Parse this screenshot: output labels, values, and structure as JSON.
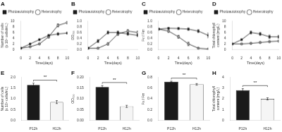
{
  "chart_data": [
    {
      "type": "line",
      "title": "A",
      "xlabel": "Time(days)",
      "ylabel": "Number of cells (x 10⁶ cells/mL)",
      "x": [
        0,
        2,
        4,
        6,
        8,
        10
      ],
      "xlim": [
        0,
        10
      ],
      "xticks": [
        0,
        2,
        4,
        6,
        8,
        10
      ],
      "ylim": [
        0,
        10
      ],
      "yticks": [
        0,
        2,
        4,
        6,
        8,
        10
      ],
      "legend": "upper left",
      "grid": false,
      "series": [
        {
          "name": "Photoautotrophy",
          "color": "#1a1a1a",
          "marker": "square",
          "values": [
            0.5,
            2.0,
            3.5,
            5.0,
            5.5,
            5.8
          ],
          "errors": [
            0.1,
            0.2,
            0.3,
            0.3,
            0.4,
            0.3
          ]
        },
        {
          "name": "Heterotrophy",
          "color": "#1a1a1a",
          "marker": "open-circle",
          "values": [
            0.5,
            1.0,
            2.0,
            4.5,
            8.5,
            9.5
          ],
          "errors": [
            0.1,
            0.1,
            0.2,
            0.4,
            0.5,
            0.4
          ]
        }
      ]
    },
    {
      "type": "line",
      "title": "B",
      "xlabel": "Time(days)",
      "ylabel": "OD₇₀₀",
      "x": [
        0,
        2,
        4,
        6,
        8,
        10
      ],
      "xlim": [
        0,
        10
      ],
      "xticks": [
        0,
        2,
        4,
        6,
        8,
        10
      ],
      "ylim": [
        0,
        1.0
      ],
      "yticks": [
        {
          "value": 0,
          "label": "0.0"
        },
        0.2,
        0.4,
        0.6,
        0.8,
        {
          "value": 1.0,
          "label": "1.0"
        }
      ],
      "legend": "upper left",
      "grid": false,
      "series": [
        {
          "name": "Photoautotrophy",
          "color": "#1a1a1a",
          "marker": "square",
          "values": [
            0.05,
            0.3,
            0.6,
            0.6,
            0.55,
            0.5
          ],
          "errors": [
            0.02,
            0.05,
            0.05,
            0.05,
            0.04,
            0.04
          ]
        },
        {
          "name": "Heterotrophy",
          "color": "#1a1a1a",
          "marker": "open-circle",
          "values": [
            0.05,
            0.05,
            0.2,
            0.55,
            0.65,
            0.6
          ],
          "errors": [
            0.02,
            0.02,
            0.04,
            0.05,
            0.05,
            0.05
          ]
        }
      ]
    },
    {
      "type": "line",
      "title": "C",
      "xlabel": "Time(days)",
      "ylabel": "Fv / Fm",
      "x": [
        0,
        2,
        4,
        6,
        8,
        10
      ],
      "xlim": [
        0,
        10
      ],
      "xticks": [
        0,
        2,
        4,
        6,
        8,
        10
      ],
      "ylim": [
        0,
        1.0
      ],
      "yticks": [
        {
          "value": 0,
          "label": "0.0"
        },
        0.2,
        0.4,
        0.6,
        0.8,
        {
          "value": 1.0,
          "label": "1.0"
        }
      ],
      "legend": "upper left",
      "grid": false,
      "series": [
        {
          "name": "Photoautotrophy",
          "color": "#1a1a1a",
          "marker": "square",
          "values": [
            0.72,
            0.75,
            0.74,
            0.72,
            0.65,
            0.5
          ],
          "errors": [
            0.02,
            0.02,
            0.03,
            0.04,
            0.05,
            0.08
          ]
        },
        {
          "name": "Heterotrophy",
          "color": "#1a1a1a",
          "marker": "open-circle",
          "values": [
            0.72,
            0.65,
            0.45,
            0.2,
            0.05,
            0.02
          ],
          "errors": [
            0.02,
            0.04,
            0.05,
            0.06,
            0.02,
            0.01
          ]
        }
      ]
    },
    {
      "type": "line",
      "title": "D",
      "xlabel": "Time(days)",
      "ylabel": "Total chlorophyll content (mg/L)",
      "x": [
        0,
        2,
        4,
        6,
        8,
        10
      ],
      "xlim": [
        0,
        10
      ],
      "xticks": [
        0,
        2,
        4,
        6,
        8,
        10
      ],
      "ylim": [
        0,
        10
      ],
      "yticks": [
        0,
        2,
        4,
        6,
        8,
        10
      ],
      "legend": "upper left",
      "grid": false,
      "series": [
        {
          "name": "Photoautotrophy",
          "color": "#1a1a1a",
          "marker": "square",
          "values": [
            2.0,
            3.5,
            6.0,
            5.5,
            4.5,
            4.5
          ],
          "errors": [
            0.2,
            0.3,
            0.5,
            0.5,
            0.6,
            0.5
          ]
        },
        {
          "name": "Heterotrophy",
          "color": "#1a1a1a",
          "marker": "open-circle",
          "values": [
            2.0,
            2.0,
            2.2,
            2.5,
            2.8,
            3.0
          ],
          "errors": [
            0.1,
            0.1,
            0.2,
            0.2,
            0.2,
            0.2
          ]
        }
      ]
    },
    {
      "type": "bar",
      "title": "E",
      "ylabel": "Number of cells (x 10⁶ cells/mL)",
      "categories": [
        "P12h",
        "H12h"
      ],
      "values": [
        1.65,
        0.85
      ],
      "errors": [
        0.08,
        0.07
      ],
      "colors": [
        "#1a1a1a",
        "#f5f5f5"
      ],
      "color": "#1a1a1a",
      "annotation": "**",
      "ylim": [
        0,
        2.0
      ],
      "yticks": [
        {
          "value": 0,
          "label": "0.0"
        },
        0.5,
        {
          "value": 1.0,
          "label": "1.0"
        },
        1.5,
        {
          "value": 2.0,
          "label": "2.0"
        }
      ],
      "grid": false
    },
    {
      "type": "bar",
      "title": "F",
      "ylabel": "OD₇₀₀",
      "categories": [
        "P12h",
        "H12h"
      ],
      "values": [
        0.155,
        0.065
      ],
      "errors": [
        0.007,
        0.005
      ],
      "colors": [
        "#1a1a1a",
        "#f5f5f5"
      ],
      "color": "#1a1a1a",
      "annotation": "**",
      "ylim": [
        0,
        0.2
      ],
      "yticks": [
        {
          "value": 0,
          "label": "0.00"
        },
        0.05,
        {
          "value": 0.1,
          "label": "0.10"
        },
        0.15,
        {
          "value": 0.2,
          "label": "0.20"
        }
      ],
      "grid": false
    },
    {
      "type": "bar",
      "title": "G",
      "ylabel": "Fv / Fm",
      "categories": [
        "P12h",
        "H12h"
      ],
      "values": [
        0.72,
        0.67
      ],
      "errors": [
        0.01,
        0.015
      ],
      "colors": [
        "#1a1a1a",
        "#f5f5f5"
      ],
      "color": "#1a1a1a",
      "annotation": "**",
      "ylim": [
        0,
        0.8
      ],
      "yticks": [
        {
          "value": 0,
          "label": "0.0"
        },
        0.2,
        0.4,
        0.6,
        0.8
      ],
      "grid": false
    },
    {
      "type": "bar",
      "title": "H",
      "ylabel": "Total chlorophyll content (mg/L)",
      "categories": [
        "P12h",
        "H12h"
      ],
      "values": [
        2.8,
        2.0
      ],
      "errors": [
        0.15,
        0.1
      ],
      "colors": [
        "#1a1a1a",
        "#f5f5f5"
      ],
      "color": "#1a1a1a",
      "annotation": "**",
      "ylim": [
        0,
        4.0
      ],
      "yticks": [
        0,
        1,
        2,
        3,
        4
      ],
      "grid": false
    }
  ]
}
